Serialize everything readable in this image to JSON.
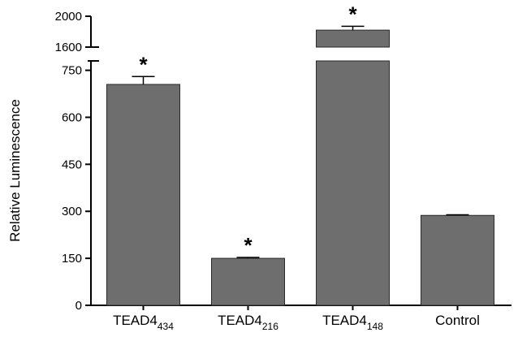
{
  "chart_data": {
    "type": "bar",
    "ylabel": "Relative Luminescence",
    "categories": [
      {
        "name": "TEAD4",
        "sub": "434"
      },
      {
        "name": "TEAD4",
        "sub": "216"
      },
      {
        "name": "TEAD4",
        "sub": "148"
      },
      {
        "name": "Control",
        "sub": ""
      }
    ],
    "values": [
      705,
      150,
      1820,
      287
    ],
    "errors": [
      25,
      3,
      50,
      2
    ],
    "significant": [
      true,
      true,
      true,
      false
    ],
    "significance_mark": "*",
    "y_axis_break": true,
    "ylim_lower": [
      0,
      780
    ],
    "ylim_upper": [
      1600,
      2000
    ],
    "yticks_lower": [
      0,
      150,
      300,
      450,
      600,
      750
    ],
    "yticks_upper": [
      1600,
      2000
    ],
    "bar_color": "#6e6e6e",
    "bar_edge_color": "#2a2a2a",
    "grid": false,
    "legend": "none"
  }
}
